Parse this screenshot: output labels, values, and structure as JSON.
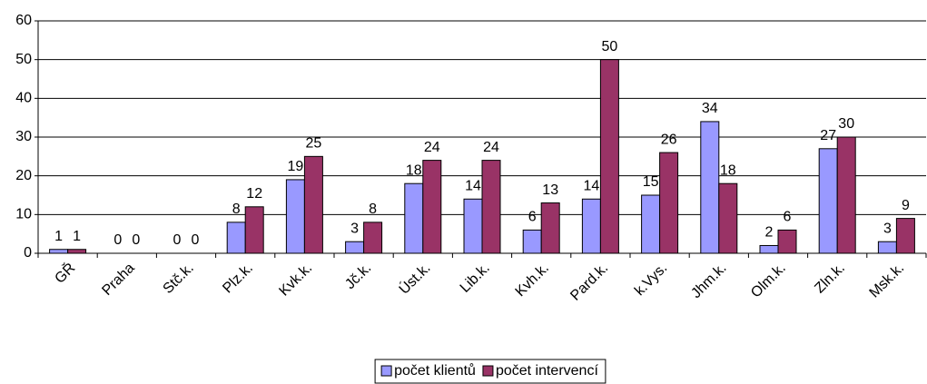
{
  "chart_data": {
    "type": "bar",
    "categories": [
      "GŘ",
      "Praha",
      "Stč.k.",
      "Plz.k.",
      "Kvk.k.",
      "Jč.k.",
      "Úst.k.",
      "Lib.k.",
      "Kvh.k.",
      "Pard.k.",
      "k.Vys.",
      "Jhm.k.",
      "Olm.k.",
      "Zln.k.",
      "Msk.k."
    ],
    "series": [
      {
        "name": "počet klientů",
        "color": "#9999ff",
        "values": [
          1,
          0,
          0,
          8,
          19,
          3,
          18,
          14,
          6,
          14,
          15,
          34,
          2,
          27,
          3
        ]
      },
      {
        "name": "počet intervencí",
        "color": "#993366",
        "values": [
          1,
          0,
          0,
          12,
          25,
          8,
          24,
          24,
          13,
          50,
          26,
          18,
          6,
          30,
          9
        ]
      }
    ],
    "ylim": [
      0,
      60
    ],
    "yticks": [
      0,
      10,
      20,
      30,
      40,
      50,
      60
    ],
    "grid": true,
    "legend": "bottom"
  }
}
